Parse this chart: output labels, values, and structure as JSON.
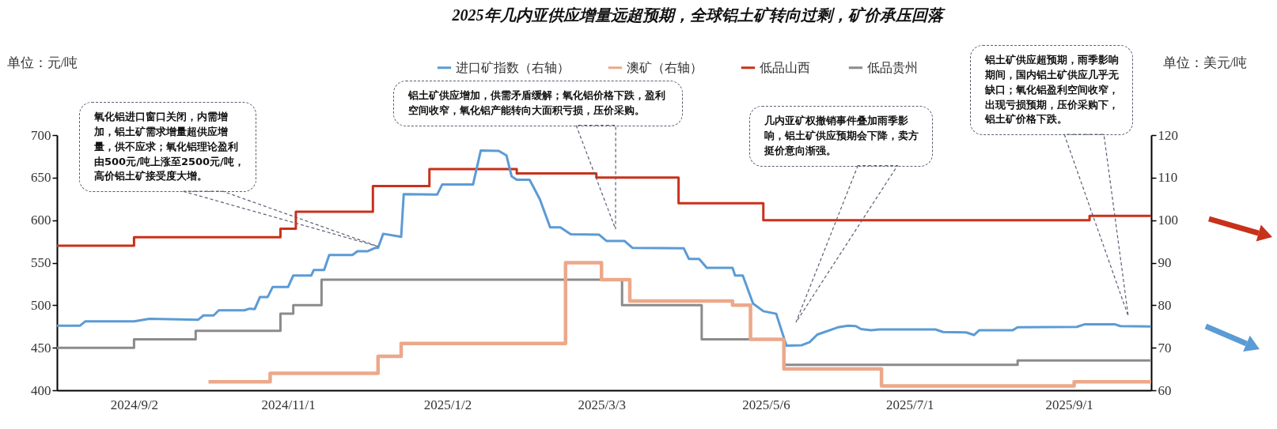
{
  "chart_data": {
    "type": "line",
    "title": "2025年几内亚供应增量远超预期，全球铝土矿转向过剩，矿价承压回落",
    "ylabel": "单位：元/吨",
    "y2label": "单位：美元/吨",
    "xlim": [
      "2024-08-03",
      "2025-10-03"
    ],
    "xticks": [
      {
        "value": "2024-09-02",
        "label": "2024/9/2"
      },
      {
        "value": "2024-11-01",
        "label": "2024/11/1"
      },
      {
        "value": "2025-01-02",
        "label": "2025/1/2"
      },
      {
        "value": "2025-03-03",
        "label": "2025/3/3"
      },
      {
        "value": "2025-05-06",
        "label": "2025/5/6"
      },
      {
        "value": "2025-07-01",
        "label": "2025/7/1"
      },
      {
        "value": "2025-09-01",
        "label": "2025/9/1"
      }
    ],
    "ylim": [
      400,
      700
    ],
    "yticks": [
      400,
      450,
      500,
      550,
      600,
      650,
      700
    ],
    "y2lim": [
      60,
      120
    ],
    "y2ticks": [
      60,
      70,
      80,
      90,
      100,
      110,
      120
    ],
    "legend": "top",
    "series": [
      {
        "name": "进口矿指数（右轴）",
        "color": "#5b9bd5",
        "axis": "y2",
        "x": [
          "2024-08-03",
          "2024-08-12",
          "2024-08-14",
          "2024-09-02",
          "2024-09-08",
          "2024-09-27",
          "2024-09-29",
          "2024-10-03",
          "2024-10-05",
          "2024-10-15",
          "2024-10-17",
          "2024-10-19",
          "2024-10-21",
          "2024-10-24",
          "2024-10-26",
          "2024-11-01",
          "2024-11-03",
          "2024-11-10",
          "2024-11-11",
          "2024-11-15",
          "2024-11-17",
          "2024-11-26",
          "2024-11-28",
          "2024-12-02",
          "2024-12-05",
          "2024-12-06",
          "2024-12-08",
          "2024-12-15",
          "2024-12-16",
          "2024-12-29",
          "2024-12-31",
          "2025-01-12",
          "2025-01-15",
          "2025-01-22",
          "2025-01-25",
          "2025-01-27",
          "2025-01-29",
          "2025-02-03",
          "2025-02-07",
          "2025-02-11",
          "2025-02-15",
          "2025-02-19",
          "2025-03-02",
          "2025-03-05",
          "2025-03-12",
          "2025-03-15",
          "2025-04-04",
          "2025-04-06",
          "2025-04-10",
          "2025-04-13",
          "2025-04-23",
          "2025-04-24",
          "2025-04-27",
          "2025-05-01",
          "2025-05-05",
          "2025-05-10",
          "2025-05-14",
          "2025-05-20",
          "2025-05-23",
          "2025-05-26",
          "2025-06-03",
          "2025-06-07",
          "2025-06-10",
          "2025-06-12",
          "2025-06-16",
          "2025-06-19",
          "2025-07-11",
          "2025-07-14",
          "2025-07-23",
          "2025-07-26",
          "2025-07-28",
          "2025-08-10",
          "2025-08-12",
          "2025-09-04",
          "2025-09-07",
          "2025-09-19",
          "2025-09-21",
          "2025-10-03"
        ],
        "values": [
          75.2,
          75.2,
          76.2,
          76.2,
          76.8,
          76.6,
          77.6,
          77.6,
          78.8,
          78.8,
          79.2,
          79.1,
          81.9,
          81.9,
          84.3,
          84.3,
          87.0,
          87.0,
          88.3,
          88.3,
          91.8,
          91.8,
          92.7,
          92.7,
          93.5,
          93.5,
          96.8,
          96.1,
          106.1,
          106.0,
          108.4,
          108.4,
          116.4,
          116.3,
          115.2,
          110.3,
          109.5,
          109.5,
          104.9,
          98.3,
          98.3,
          96.7,
          96.6,
          95.1,
          95.1,
          93.5,
          93.4,
          90.9,
          90.9,
          88.8,
          88.8,
          87.0,
          87.0,
          80.4,
          78.6,
          78.0,
          70.5,
          70.6,
          71.3,
          73.1,
          74.8,
          75.2,
          75.1,
          74.4,
          74.1,
          74.3,
          74.3,
          73.7,
          73.6,
          73.0,
          74.1,
          74.1,
          74.8,
          74.9,
          75.5,
          75.5,
          75.1,
          75.0
        ]
      },
      {
        "name": "澳矿（右轴）",
        "color": "#eca88a",
        "axis": "y2",
        "type": "step",
        "x": [
          "2024-10-01",
          "2024-10-25",
          "2024-12-06",
          "2024-12-15",
          "2025-02-17",
          "2025-03-03",
          "2025-03-14",
          "2025-04-23",
          "2025-04-30",
          "2025-05-13",
          "2025-06-20",
          "2025-09-03",
          "2025-10-03"
        ],
        "values": [
          62,
          64,
          68,
          71,
          90,
          86,
          81,
          80,
          72,
          65,
          61,
          62,
          62
        ]
      },
      {
        "name": "低品山西",
        "color": "#c8311b",
        "type": "step",
        "x": [
          "2024-08-03",
          "2024-09-02",
          "2024-10-29",
          "2024-11-04",
          "2024-12-04",
          "2024-12-26",
          "2025-01-29",
          "2025-03-01",
          "2025-04-02",
          "2025-05-05",
          "2025-09-09",
          "2025-10-03"
        ],
        "values": [
          570,
          580,
          590,
          610,
          640,
          660,
          655,
          650,
          620,
          600,
          605,
          605
        ]
      },
      {
        "name": "低品贵州",
        "color": "#8c8a8a",
        "type": "step",
        "x": [
          "2024-08-03",
          "2024-09-02",
          "2024-09-26",
          "2024-10-29",
          "2024-11-03",
          "2024-11-14",
          "2025-03-11",
          "2025-04-11",
          "2025-05-13",
          "2025-08-12",
          "2025-10-03"
        ],
        "values": [
          450,
          460,
          470,
          490,
          500,
          530,
          500,
          460,
          430,
          435,
          435
        ]
      }
    ],
    "annotations": [
      "氧化铝进口窗口关闭，内需增加，铝土矿需求增量超供应增量，供不应求；氧化铝理论盈利由500元/吨上涨至2500元/吨，高价铝土矿接受度大增。",
      "铝土矿供应增加，供需矛盾缓解；氧化铝价格下跌，盈利空间收窄，氧化铝产能转向大面积亏损，压价采购。",
      "几内亚矿权撤销事件叠加雨季影响，铝土矿供应预期会下降，卖方挺价意向渐强。",
      "铝土矿供应超预期，雨季影响期间，国内铝土矿供应几乎无缺口；氧化铝盈利空间收窄，出现亏损预期，压价采购下，铝土矿价格下跌。"
    ]
  }
}
